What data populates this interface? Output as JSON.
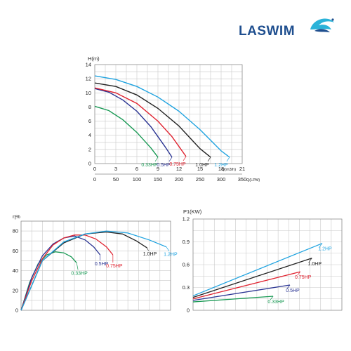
{
  "brand": {
    "name": "LASWIM",
    "color": "#1f4f8f",
    "accent": "#2bb3d9"
  },
  "chart_data": [
    {
      "type": "line",
      "ylabel": "H(m)",
      "xlabel": "Q(m3/h)",
      "xlabel2": "Q(LPM)",
      "xlim": [
        0,
        21
      ],
      "ylim": [
        0,
        14
      ],
      "x2lim": [
        0,
        350
      ],
      "xticks": [
        0,
        3,
        6,
        9,
        12,
        15,
        18,
        21
      ],
      "x2ticks": [
        0,
        50,
        100,
        150,
        200,
        250,
        300,
        350
      ],
      "yticks": [
        0,
        2,
        4,
        6,
        8,
        10,
        12,
        14
      ],
      "grid": true,
      "series": [
        {
          "name": "0.33HP",
          "color": "#1a9a55",
          "x": [
            0,
            2,
            4,
            6,
            8,
            9
          ],
          "y": [
            8.1,
            7.5,
            6.2,
            4.4,
            2.2,
            0.9
          ]
        },
        {
          "name": "0.5HP",
          "color": "#2b3593",
          "x": [
            0,
            2,
            4,
            6,
            8,
            10,
            11
          ],
          "y": [
            10.6,
            10.1,
            9.0,
            7.4,
            5.2,
            2.4,
            0.9
          ]
        },
        {
          "name": "0.75HP",
          "color": "#e02330",
          "x": [
            0,
            3,
            6,
            9,
            11,
            13
          ],
          "y": [
            10.7,
            10.0,
            8.5,
            6.0,
            3.8,
            1.0
          ]
        },
        {
          "name": "1.0HP",
          "color": "#222222",
          "x": [
            0,
            3,
            6,
            9,
            12,
            15,
            16.5
          ],
          "y": [
            11.4,
            10.9,
            9.7,
            7.8,
            5.3,
            2.1,
            0.9
          ]
        },
        {
          "name": "1.2HP",
          "color": "#1fa3e0",
          "x": [
            0,
            3,
            6,
            9,
            12,
            15,
            18,
            19.2
          ],
          "y": [
            12.4,
            11.9,
            10.9,
            9.4,
            7.4,
            4.8,
            1.8,
            0.9
          ]
        }
      ]
    },
    {
      "type": "line",
      "ylabel": "η%",
      "ylim": [
        0,
        90
      ],
      "yticks": [
        0,
        20,
        40,
        60,
        80
      ],
      "grid": true,
      "series": [
        {
          "name": "0.33HP",
          "color": "#1a9a55",
          "x": [
            0,
            0.8,
            1.6,
            2.4,
            3.2,
            4.0,
            4.7,
            5.2
          ],
          "y": [
            0,
            28,
            47,
            56,
            59,
            58,
            54,
            48
          ]
        },
        {
          "name": "0.5HP",
          "color": "#2b3593",
          "x": [
            0,
            1,
            2,
            3,
            4,
            5,
            6,
            6.8,
            7.4
          ],
          "y": [
            0,
            33,
            55,
            67,
            73,
            75,
            71,
            64,
            56
          ]
        },
        {
          "name": "0.75HP",
          "color": "#e02330",
          "x": [
            0,
            1,
            2,
            3,
            4,
            5,
            6,
            7,
            8,
            8.6
          ],
          "y": [
            0,
            30,
            52,
            66,
            73,
            76,
            76,
            72,
            64,
            56
          ]
        },
        {
          "name": "1.0HP",
          "color": "#222222",
          "x": [
            0,
            2,
            4,
            6,
            8,
            9.5,
            10.8,
            11.8
          ],
          "y": [
            0,
            50,
            68,
            77,
            79,
            77,
            70,
            63
          ]
        },
        {
          "name": "1.2HP",
          "color": "#1fa3e0",
          "x": [
            0,
            2,
            4,
            6,
            8,
            10,
            12,
            13.6
          ],
          "y": [
            0,
            50,
            69,
            77,
            80,
            78,
            71,
            64
          ]
        }
      ]
    },
    {
      "type": "line",
      "ylabel": "P1(KW)",
      "ylim": [
        0,
        1.2
      ],
      "yticks": [
        0,
        0.3,
        0.6,
        0.9,
        1.2
      ],
      "yticklabels": [
        "0",
        "0.3",
        "0.6",
        "0.9",
        "1.2"
      ],
      "grid": true,
      "series": [
        {
          "name": "0.33HP",
          "color": "#1a9a55",
          "x": [
            0,
            1
          ],
          "y": [
            0.11,
            0.23
          ]
        },
        {
          "name": "0.5HP",
          "color": "#2b3593",
          "x": [
            0,
            1
          ],
          "y": [
            0.13,
            0.4
          ]
        },
        {
          "name": "0.75HP",
          "color": "#e02330",
          "x": [
            0,
            1
          ],
          "y": [
            0.15,
            0.58
          ]
        },
        {
          "name": "1.0HP",
          "color": "#222222",
          "x": [
            0,
            1
          ],
          "y": [
            0.17,
            0.73
          ]
        },
        {
          "name": "1.2HP",
          "color": "#1fa3e0",
          "x": [
            0,
            1
          ],
          "y": [
            0.19,
            0.88
          ]
        }
      ]
    }
  ]
}
